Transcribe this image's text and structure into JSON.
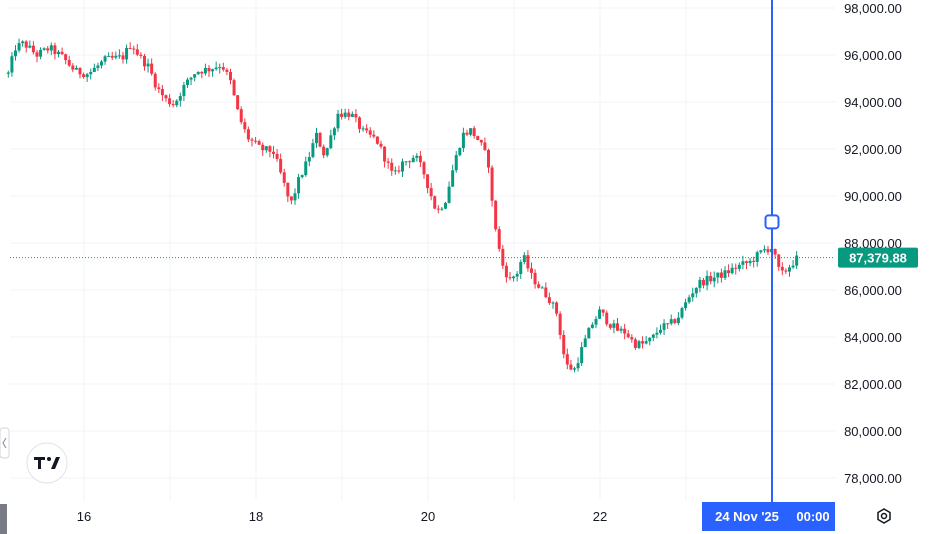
{
  "chart_data": {
    "type": "candlestick",
    "ylim": [
      77000,
      98500
    ],
    "y_ticks": [
      "98,000.00",
      "96,000.00",
      "94,000.00",
      "92,000.00",
      "90,000.00",
      "88,000.00",
      "86,000.00",
      "84,000.00",
      "82,000.00",
      "80,000.00",
      "78,000.00"
    ],
    "y_tick_values": [
      98000,
      96000,
      94000,
      92000,
      90000,
      88000,
      86000,
      84000,
      82000,
      80000,
      78000
    ],
    "x_ticks": [
      "16",
      "18",
      "20",
      "22"
    ],
    "x_tick_days": [
      16,
      18,
      20,
      22
    ],
    "x_range_days": [
      15.1,
      24.4
    ],
    "last_price": 87379.88,
    "last_price_label": "87,379.88",
    "crosshair_day": 24.0,
    "crosshair_price": 88900,
    "crosshair_label_date": "24 Nov '25",
    "crosshair_label_time": "00:00",
    "up_color": "#089981",
    "down_color": "#f23645",
    "crosshair_color": "#2962ff",
    "price_tag_color": "#089981",
    "path": [
      [
        15.12,
        95200
      ],
      [
        15.2,
        96300
      ],
      [
        15.3,
        96500
      ],
      [
        15.45,
        96000
      ],
      [
        15.6,
        96300
      ],
      [
        15.75,
        95900
      ],
      [
        15.9,
        95300
      ],
      [
        16.05,
        95200
      ],
      [
        16.25,
        95800
      ],
      [
        16.45,
        95900
      ],
      [
        16.55,
        96500
      ],
      [
        16.65,
        95900
      ],
      [
        16.75,
        95500
      ],
      [
        16.85,
        94600
      ],
      [
        16.95,
        94100
      ],
      [
        17.05,
        93900
      ],
      [
        17.15,
        94600
      ],
      [
        17.3,
        95300
      ],
      [
        17.45,
        95400
      ],
      [
        17.6,
        95600
      ],
      [
        17.7,
        94900
      ],
      [
        17.8,
        93400
      ],
      [
        17.9,
        92500
      ],
      [
        18.05,
        92000
      ],
      [
        18.2,
        91900
      ],
      [
        18.3,
        90800
      ],
      [
        18.4,
        89600
      ],
      [
        18.5,
        90700
      ],
      [
        18.6,
        91500
      ],
      [
        18.7,
        92600
      ],
      [
        18.8,
        91700
      ],
      [
        18.9,
        92900
      ],
      [
        18.95,
        93500
      ],
      [
        19.1,
        93500
      ],
      [
        19.25,
        92700
      ],
      [
        19.4,
        92400
      ],
      [
        19.5,
        91600
      ],
      [
        19.6,
        90800
      ],
      [
        19.7,
        91400
      ],
      [
        19.85,
        91700
      ],
      [
        19.95,
        91000
      ],
      [
        20.1,
        89300
      ],
      [
        20.2,
        89800
      ],
      [
        20.3,
        91300
      ],
      [
        20.4,
        92600
      ],
      [
        20.5,
        92800
      ],
      [
        20.6,
        92300
      ],
      [
        20.7,
        91500
      ],
      [
        20.75,
        89500
      ],
      [
        20.85,
        87200
      ],
      [
        20.95,
        86400
      ],
      [
        21.05,
        86800
      ],
      [
        21.1,
        87500
      ],
      [
        21.2,
        86600
      ],
      [
        21.3,
        86100
      ],
      [
        21.4,
        85700
      ],
      [
        21.5,
        85000
      ],
      [
        21.6,
        82800
      ],
      [
        21.7,
        82600
      ],
      [
        21.8,
        83600
      ],
      [
        21.9,
        84500
      ],
      [
        22.0,
        85100
      ],
      [
        22.1,
        84600
      ],
      [
        22.2,
        84300
      ],
      [
        22.3,
        84200
      ],
      [
        22.4,
        83700
      ],
      [
        22.5,
        83700
      ],
      [
        22.6,
        83900
      ],
      [
        22.7,
        84400
      ],
      [
        22.8,
        84500
      ],
      [
        22.9,
        84800
      ],
      [
        23.05,
        85800
      ],
      [
        23.15,
        86300
      ],
      [
        23.3,
        86500
      ],
      [
        23.45,
        86700
      ],
      [
        23.6,
        87000
      ],
      [
        23.75,
        87200
      ],
      [
        23.9,
        87700
      ],
      [
        24.0,
        87800
      ],
      [
        24.1,
        86600
      ],
      [
        24.2,
        87000
      ],
      [
        24.3,
        87380
      ]
    ]
  }
}
